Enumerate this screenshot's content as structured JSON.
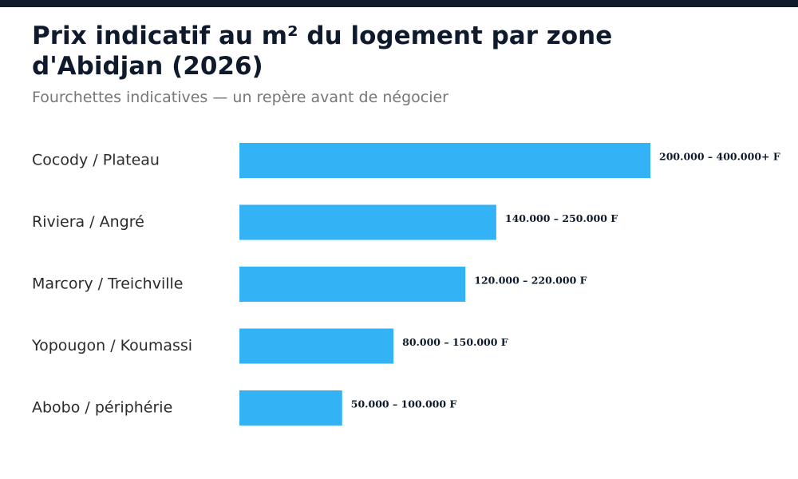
{
  "header": {
    "title": "Prix indicatif au m² du logement par zone d'Abidjan (2026)",
    "subtitle": "Fourchettes indicatives — un repère avant de négocier"
  },
  "colors": {
    "bar": "#33b3f5",
    "topbar": "#0f1b2d",
    "title": "#0f1b2d",
    "subtitle": "#777777"
  },
  "chart_data": {
    "type": "bar",
    "orientation": "horizontal",
    "title": "Prix indicatif au m² du logement par zone d'Abidjan (2026)",
    "subtitle": "Fourchettes indicatives — un repère avant de négocier",
    "xlabel": "",
    "ylabel": "",
    "grid": false,
    "legend": "none",
    "categories": [
      "Cocody / Plateau",
      "Riviera / Angré",
      "Marcory / Treichville",
      "Yopougon / Koumassi",
      "Abobo / périphérie"
    ],
    "values": [
      400000,
      250000,
      220000,
      150000,
      100000
    ],
    "ranges": [
      [
        200000,
        400000
      ],
      [
        140000,
        250000
      ],
      [
        120000,
        220000
      ],
      [
        80000,
        150000
      ],
      [
        50000,
        100000
      ]
    ],
    "value_labels": [
      "200.000 – 400.000+ F",
      "140.000 – 250.000 F",
      "120.000 – 220.000 F",
      "80.000 – 150.000 F",
      "50.000 – 100.000 F"
    ]
  }
}
